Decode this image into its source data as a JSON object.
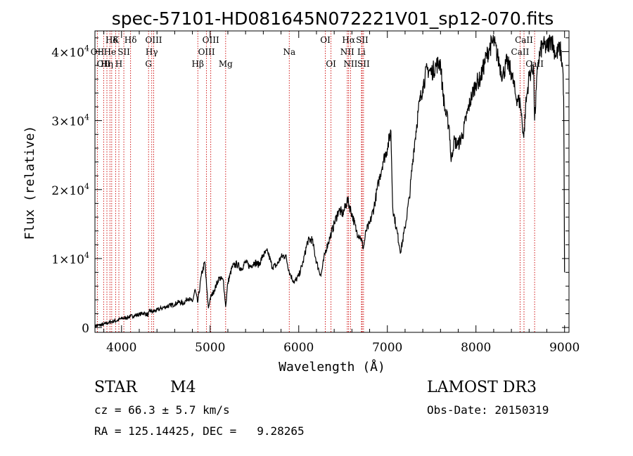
{
  "chart_data": {
    "type": "line",
    "title": "spec-57101-HD081645N072221V01_sp12-070.fits",
    "xlabel": "Wavelength (Å)",
    "ylabel": "Flux (relative)",
    "xlim": [
      3700,
      9050
    ],
    "ylim": [
      -700,
      43000
    ],
    "x_ticks": [
      {
        "value": 4000,
        "label": "4000"
      },
      {
        "value": 5000,
        "label": "5000"
      },
      {
        "value": 6000,
        "label": "6000"
      },
      {
        "value": 7000,
        "label": "7000"
      },
      {
        "value": 8000,
        "label": "8000"
      },
      {
        "value": 9000,
        "label": "9000"
      }
    ],
    "y_ticks": [
      {
        "value": 0,
        "base": "0",
        "exp": ""
      },
      {
        "value": 10000,
        "base": "1×10",
        "exp": "4"
      },
      {
        "value": 20000,
        "base": "2×10",
        "exp": "4"
      },
      {
        "value": 30000,
        "base": "3×10",
        "exp": "4"
      },
      {
        "value": 40000,
        "base": "4×10",
        "exp": "4"
      }
    ],
    "spectral_lines": [
      {
        "wavelength": 3727,
        "label": "OII",
        "row": 2
      },
      {
        "wavelength": 3798,
        "label": "OII",
        "row": 3
      },
      {
        "wavelength": 3835,
        "label": "Hη",
        "row": 3
      },
      {
        "wavelength": 3869,
        "label": "He",
        "row": 2
      },
      {
        "wavelength": 3889,
        "label": "Hδ",
        "row": 1
      },
      {
        "wavelength": 3934,
        "label": "K",
        "row": 1
      },
      {
        "wavelength": 3970,
        "label": "H",
        "row": 3
      },
      {
        "wavelength": 4026,
        "label": "SII",
        "row": 2
      },
      {
        "wavelength": 4102,
        "label": "Hδ",
        "row": 1
      },
      {
        "wavelength": 4305,
        "label": "G",
        "row": 3
      },
      {
        "wavelength": 4341,
        "label": "Hγ",
        "row": 2
      },
      {
        "wavelength": 4363,
        "label": "OIII",
        "row": 1
      },
      {
        "wavelength": 4861,
        "label": "Hβ",
        "row": 3
      },
      {
        "wavelength": 4959,
        "label": "OIII",
        "row": 2
      },
      {
        "wavelength": 5007,
        "label": "OIII",
        "row": 1
      },
      {
        "wavelength": 5175,
        "label": "Mg",
        "row": 3
      },
      {
        "wavelength": 5893,
        "label": "Na",
        "row": 2
      },
      {
        "wavelength": 6300,
        "label": "OI",
        "row": 1
      },
      {
        "wavelength": 6364,
        "label": "OI",
        "row": 3
      },
      {
        "wavelength": 6548,
        "label": "NII",
        "row": 2
      },
      {
        "wavelength": 6563,
        "label": "Hα",
        "row": 1
      },
      {
        "wavelength": 6584,
        "label": "NII",
        "row": 3
      },
      {
        "wavelength": 6708,
        "label": "Li",
        "row": 2
      },
      {
        "wavelength": 6716,
        "label": "SII",
        "row": 1
      },
      {
        "wavelength": 6731,
        "label": "SII",
        "row": 3
      },
      {
        "wavelength": 8498,
        "label": "CaII",
        "row": 2
      },
      {
        "wavelength": 8542,
        "label": "CaII",
        "row": 1
      },
      {
        "wavelength": 8662,
        "label": "CaII",
        "row": 3
      }
    ],
    "series": [
      {
        "name": "flux",
        "points": [
          [
            3700,
            200
          ],
          [
            3750,
            350
          ],
          [
            3800,
            450
          ],
          [
            3850,
            700
          ],
          [
            3900,
            900
          ],
          [
            3950,
            1000
          ],
          [
            4000,
            1300
          ],
          [
            4050,
            1400
          ],
          [
            4100,
            1600
          ],
          [
            4150,
            1750
          ],
          [
            4200,
            1900
          ],
          [
            4250,
            2100
          ],
          [
            4300,
            1800
          ],
          [
            4320,
            2400
          ],
          [
            4350,
            2300
          ],
          [
            4400,
            2500
          ],
          [
            4450,
            2800
          ],
          [
            4500,
            3000
          ],
          [
            4550,
            3200
          ],
          [
            4600,
            3400
          ],
          [
            4650,
            3700
          ],
          [
            4700,
            3500
          ],
          [
            4750,
            4300
          ],
          [
            4800,
            3700
          ],
          [
            4830,
            5500
          ],
          [
            4860,
            3600
          ],
          [
            4900,
            7500
          ],
          [
            4940,
            9500
          ],
          [
            4960,
            6000
          ],
          [
            4980,
            2800
          ],
          [
            5000,
            4200
          ],
          [
            5050,
            5500
          ],
          [
            5100,
            7200
          ],
          [
            5150,
            6800
          ],
          [
            5175,
            3000
          ],
          [
            5200,
            6500
          ],
          [
            5250,
            8800
          ],
          [
            5300,
            9200
          ],
          [
            5350,
            8500
          ],
          [
            5400,
            9500
          ],
          [
            5450,
            8800
          ],
          [
            5500,
            9500
          ],
          [
            5550,
            9100
          ],
          [
            5600,
            10500
          ],
          [
            5650,
            11000
          ],
          [
            5700,
            8800
          ],
          [
            5750,
            9000
          ],
          [
            5800,
            10200
          ],
          [
            5850,
            10500
          ],
          [
            5900,
            7800
          ],
          [
            5950,
            6500
          ],
          [
            6000,
            7500
          ],
          [
            6050,
            9500
          ],
          [
            6100,
            12500
          ],
          [
            6150,
            12800
          ],
          [
            6200,
            9500
          ],
          [
            6250,
            7500
          ],
          [
            6300,
            11000
          ],
          [
            6350,
            13000
          ],
          [
            6400,
            15000
          ],
          [
            6450,
            17000
          ],
          [
            6500,
            16500
          ],
          [
            6550,
            18500
          ],
          [
            6600,
            16500
          ],
          [
            6650,
            14000
          ],
          [
            6700,
            13000
          ],
          [
            6730,
            11500
          ],
          [
            6760,
            14000
          ],
          [
            6800,
            15000
          ],
          [
            6850,
            17500
          ],
          [
            6900,
            21000
          ],
          [
            6950,
            24000
          ],
          [
            7000,
            26000
          ],
          [
            7040,
            28500
          ],
          [
            7060,
            17500
          ],
          [
            7100,
            14500
          ],
          [
            7150,
            11000
          ],
          [
            7200,
            14500
          ],
          [
            7250,
            19000
          ],
          [
            7300,
            26000
          ],
          [
            7350,
            31500
          ],
          [
            7400,
            35000
          ],
          [
            7450,
            37500
          ],
          [
            7500,
            37000
          ],
          [
            7550,
            38000
          ],
          [
            7600,
            38500
          ],
          [
            7620,
            35000
          ],
          [
            7650,
            31500
          ],
          [
            7700,
            29000
          ],
          [
            7720,
            24000
          ],
          [
            7750,
            27000
          ],
          [
            7800,
            26500
          ],
          [
            7850,
            28000
          ],
          [
            7900,
            31000
          ],
          [
            7950,
            33500
          ],
          [
            8000,
            35500
          ],
          [
            8050,
            36000
          ],
          [
            8100,
            38500
          ],
          [
            8150,
            40500
          ],
          [
            8200,
            41500
          ],
          [
            8250,
            39000
          ],
          [
            8300,
            36500
          ],
          [
            8350,
            38500
          ],
          [
            8400,
            37000
          ],
          [
            8450,
            33500
          ],
          [
            8500,
            32500
          ],
          [
            8540,
            27500
          ],
          [
            8560,
            32000
          ],
          [
            8600,
            36500
          ],
          [
            8650,
            38000
          ],
          [
            8662,
            30000
          ],
          [
            8700,
            38500
          ],
          [
            8750,
            41000
          ],
          [
            8800,
            40500
          ],
          [
            8850,
            42000
          ],
          [
            8900,
            39500
          ],
          [
            8950,
            40500
          ],
          [
            8980,
            37500
          ],
          [
            8990,
            33500
          ],
          [
            9000,
            8000
          ]
        ]
      }
    ]
  },
  "info": {
    "class": "STAR",
    "subclass": "M4",
    "survey": "LAMOST DR3",
    "cz": "cz = 66.3 ± 5.7 km/s",
    "obs_date": "Obs-Date: 20150319",
    "radec": "RA = 125.14425, DEC =   9.28265"
  }
}
